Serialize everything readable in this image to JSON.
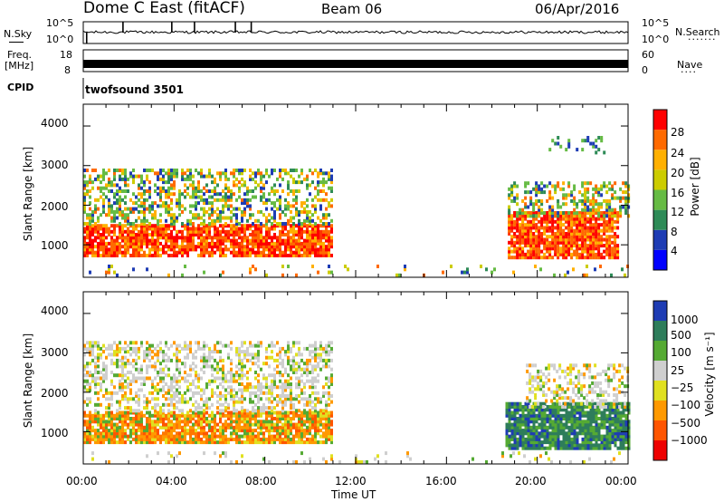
{
  "header": {
    "title": "Dome C East (fitACF)",
    "beam": "Beam 06",
    "date": "06/Apr/2016"
  },
  "status_panels": {
    "left_labels": {
      "nsky": "N.Sky",
      "freq": "Freq.",
      "freq_unit": "[MHz]",
      "cpid": "CPID"
    },
    "right_labels": {
      "nsearch": "N.Search",
      "nave": "Nave"
    },
    "noise_ticks_left": [
      "10^5",
      "10^0"
    ],
    "noise_ticks_right": [
      "10^5",
      "10^0"
    ],
    "freq_ticks": [
      "18",
      "8"
    ],
    "nave_ticks": [
      "60",
      "0"
    ],
    "cpid_text": "twofsound 3501",
    "colors": {
      "nsky_line": "#000000",
      "nsearch_line": "#555555"
    }
  },
  "chart_data": [
    {
      "type": "heatmap",
      "name": "power",
      "ylabel": "Slant Range [km]",
      "ylim": [
        180,
        4550
      ],
      "yticks": [
        "1000",
        "2000",
        "3000",
        "4000"
      ],
      "xlim_hours": [
        0,
        24
      ],
      "colorbar": {
        "label": "Power [dB]",
        "range": [
          0,
          30
        ],
        "ticks": [
          "4",
          "8",
          "12",
          "16",
          "20",
          "24",
          "28"
        ],
        "colors": [
          "#0000ff",
          "#1e3cb4",
          "#2e8b57",
          "#66bb44",
          "#cccc00",
          "#ffb000",
          "#ff6a00",
          "#ff0000"
        ]
      },
      "regions": [
        {
          "t": [
            0.0,
            11.0
          ],
          "r": [
            700,
            1500
          ],
          "level": "high"
        },
        {
          "t": [
            0.0,
            11.0
          ],
          "r": [
            1500,
            2900
          ],
          "level": "mid"
        },
        {
          "t": [
            18.7,
            23.5
          ],
          "r": [
            650,
            1800
          ],
          "level": "high"
        },
        {
          "t": [
            18.7,
            24.0
          ],
          "r": [
            1700,
            2600
          ],
          "level": "mid"
        },
        {
          "t": [
            20.5,
            23.0
          ],
          "r": [
            3300,
            3700
          ],
          "level": "low"
        }
      ]
    },
    {
      "type": "heatmap",
      "name": "velocity",
      "ylabel": "Slant Range [km]",
      "ylim": [
        180,
        4550
      ],
      "yticks": [
        "1000",
        "2000",
        "3000",
        "4000"
      ],
      "xlim_hours": [
        0,
        24
      ],
      "xticks": [
        "00:00",
        "04:00",
        "08:00",
        "12:00",
        "16:00",
        "20:00",
        "00:00"
      ],
      "xlabel": "Time UT",
      "colorbar": {
        "label": "Velocity [m s⁻¹]",
        "ticks": [
          "1000",
          "500",
          "100",
          "25",
          "−25",
          "−100",
          "−500",
          "−1000"
        ],
        "colors": [
          "#1e3cb4",
          "#2e7d5b",
          "#55aa33",
          "#cfcfcf",
          "#e0e020",
          "#ff9900",
          "#ff5500",
          "#ee0000"
        ]
      },
      "regions": [
        {
          "t": [
            0.0,
            11.0
          ],
          "r": [
            700,
            1500
          ],
          "level": "negative"
        },
        {
          "t": [
            0.0,
            11.0
          ],
          "r": [
            1500,
            3300
          ],
          "level": "near-zero"
        },
        {
          "t": [
            18.6,
            24.0
          ],
          "r": [
            550,
            1750
          ],
          "level": "positive"
        },
        {
          "t": [
            19.5,
            24.0
          ],
          "r": [
            1600,
            2700
          ],
          "level": "near-zero"
        }
      ]
    }
  ]
}
